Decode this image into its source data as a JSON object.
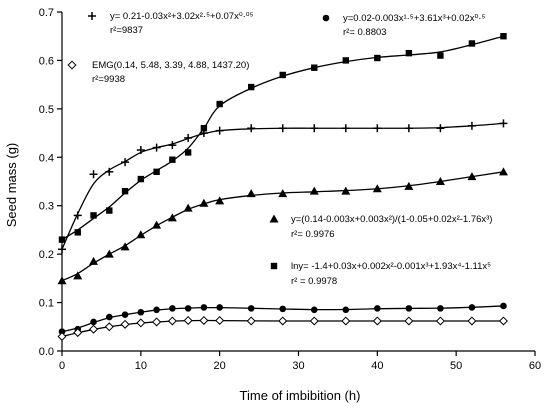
{
  "chart_data": {
    "type": "scatter",
    "xlabel": "Time of imbibition (h)",
    "ylabel": "Seed mass (g)",
    "xlim": [
      0,
      60
    ],
    "ylim": [
      0,
      0.7
    ],
    "xticks": [
      0,
      10,
      20,
      30,
      40,
      50,
      60
    ],
    "yticks": [
      0.0,
      0.1,
      0.2,
      0.3,
      0.4,
      0.5,
      0.6,
      0.7
    ],
    "grid": false,
    "series": [
      {
        "marker": "plus",
        "x": [
          0,
          2,
          4,
          6,
          8,
          10,
          12,
          14,
          16,
          18,
          20,
          24,
          28,
          32,
          36,
          40,
          44,
          48,
          52,
          56
        ],
        "y": [
          0.21,
          0.28,
          0.365,
          0.37,
          0.39,
          0.415,
          0.42,
          0.425,
          0.44,
          0.45,
          0.455,
          0.46,
          0.46,
          0.46,
          0.46,
          0.46,
          0.46,
          0.46,
          0.465,
          0.47
        ]
      },
      {
        "marker": "square",
        "x": [
          0,
          2,
          4,
          6,
          8,
          10,
          12,
          14,
          16,
          18,
          20,
          24,
          28,
          32,
          36,
          40,
          44,
          48,
          52,
          56
        ],
        "y": [
          0.23,
          0.245,
          0.28,
          0.29,
          0.33,
          0.355,
          0.37,
          0.395,
          0.41,
          0.46,
          0.51,
          0.545,
          0.57,
          0.585,
          0.6,
          0.605,
          0.615,
          0.61,
          0.635,
          0.65
        ]
      },
      {
        "marker": "triangle",
        "x": [
          0,
          2,
          4,
          6,
          8,
          10,
          12,
          14,
          16,
          18,
          20,
          24,
          28,
          32,
          36,
          40,
          44,
          48,
          52,
          56
        ],
        "y": [
          0.145,
          0.155,
          0.185,
          0.2,
          0.215,
          0.24,
          0.26,
          0.275,
          0.295,
          0.305,
          0.31,
          0.325,
          0.325,
          0.33,
          0.33,
          0.335,
          0.34,
          0.35,
          0.36,
          0.37
        ]
      },
      {
        "marker": "circle",
        "x": [
          0,
          2,
          4,
          6,
          8,
          10,
          12,
          14,
          16,
          18,
          20,
          24,
          28,
          32,
          36,
          40,
          44,
          48,
          52,
          56
        ],
        "y": [
          0.04,
          0.045,
          0.06,
          0.07,
          0.075,
          0.08,
          0.085,
          0.088,
          0.088,
          0.09,
          0.09,
          0.088,
          0.087,
          0.085,
          0.085,
          0.088,
          0.088,
          0.088,
          0.09,
          0.093
        ]
      },
      {
        "marker": "diamond",
        "x": [
          0,
          2,
          4,
          6,
          8,
          10,
          12,
          14,
          16,
          18,
          20,
          24,
          28,
          32,
          36,
          40,
          44,
          48,
          52,
          56
        ],
        "y": [
          0.03,
          0.038,
          0.045,
          0.05,
          0.055,
          0.058,
          0.06,
          0.062,
          0.063,
          0.063,
          0.063,
          0.062,
          0.062,
          0.062,
          0.062,
          0.062,
          0.062,
          0.062,
          0.062,
          0.062
        ]
      }
    ],
    "annotations": [
      {
        "id": "plus",
        "marker": "plus",
        "equation": "y= 0.21-0.03x²+3.02x²·⁵+0.07x⁰·⁰⁵",
        "r2": "r²=9837"
      },
      {
        "id": "circle",
        "marker": "circle",
        "equation": "y=0.02-0.003x¹·⁵+3.61x³+0.02x⁰·⁵",
        "r2": "r²= 0.8803"
      },
      {
        "id": "diamond",
        "marker": "diamond",
        "equation": "EMG(0.14, 5.48, 3.39, 4.88, 1437.20)",
        "r2": "r²=9938"
      },
      {
        "id": "triangle",
        "marker": "triangle",
        "equation": "y=(0.14-0.003x+0.003x²)/(1-0.05+0.02x²-1.76x³)",
        "r2": "r²= 0.9976"
      },
      {
        "id": "square",
        "marker": "square",
        "equation": "lny= -1.4+0.03x+0.002x²-0.001x³+1.93x⁴-1.11x⁵",
        "r2": "r² = 0.9978"
      }
    ]
  }
}
